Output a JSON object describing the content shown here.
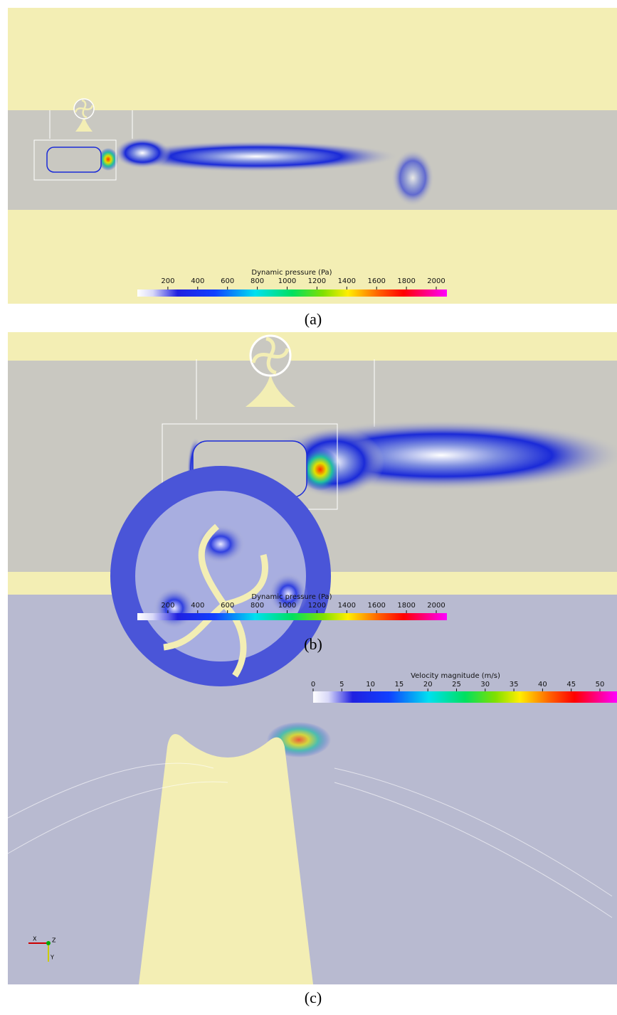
{
  "panels": [
    {
      "caption": "(a)",
      "colorbar": {
        "title": "Dynamic pressure (Pa)",
        "ticks": [
          200,
          400,
          600,
          800,
          1000,
          1200,
          1400,
          1600,
          1800,
          2000
        ]
      }
    },
    {
      "caption": "(b)",
      "colorbar": {
        "title": "Dynamic pressure (Pa)",
        "ticks": [
          200,
          400,
          600,
          800,
          1000,
          1200,
          1400,
          1600,
          1800,
          2000
        ]
      }
    },
    {
      "caption": "(c)",
      "colorbar": {
        "title": "Velocity magnitude (m/s)",
        "ticks": [
          0,
          5,
          10,
          15,
          20,
          25,
          30,
          35,
          40,
          45,
          50
        ]
      },
      "axes": {
        "x": "X",
        "y": "Y",
        "z": "Z"
      }
    }
  ]
}
